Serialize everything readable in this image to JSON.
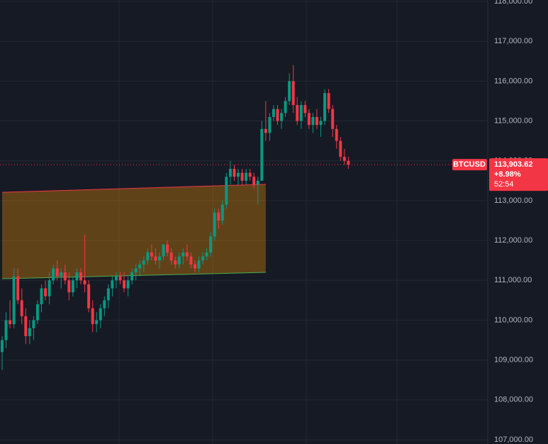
{
  "chart_data": {
    "type": "candlestick",
    "symbol": "BTCUSD",
    "ylim": [
      106893,
      118036
    ],
    "yticks": [
      {
        "value": 107000,
        "label": "107,000.00"
      },
      {
        "value": 108000,
        "label": "108,000.00"
      },
      {
        "value": 109000,
        "label": "109,000.00"
      },
      {
        "value": 110000,
        "label": "110,000.00"
      },
      {
        "value": 111000,
        "label": "111,000.00"
      },
      {
        "value": 112000,
        "label": "112,000.00"
      },
      {
        "value": 113000,
        "label": "113,000.00"
      },
      {
        "value": 114000,
        "label": "114,000.00"
      },
      {
        "value": 115000,
        "label": "115,000.00"
      },
      {
        "value": 116000,
        "label": "116,000.00"
      },
      {
        "value": 117000,
        "label": "117,000.00"
      },
      {
        "value": 118000,
        "label": "118,000.00"
      }
    ],
    "grid": true,
    "up_color": "#089981",
    "down_color": "#f23645",
    "ohlc": [
      [
        109200,
        109600,
        108750,
        109500
      ],
      [
        109500,
        110200,
        109300,
        110000
      ],
      [
        110000,
        110500,
        109800,
        109900
      ],
      [
        109900,
        111300,
        109800,
        111100
      ],
      [
        111100,
        111300,
        110400,
        110500
      ],
      [
        110500,
        110800,
        109900,
        110100
      ],
      [
        110100,
        110300,
        109400,
        109600
      ],
      [
        109600,
        110000,
        109400,
        109800
      ],
      [
        109800,
        110100,
        109500,
        110000
      ],
      [
        110000,
        110500,
        109900,
        110400
      ],
      [
        110400,
        110900,
        110200,
        110800
      ],
      [
        110800,
        111000,
        110500,
        110600
      ],
      [
        110600,
        111200,
        110400,
        111000
      ],
      [
        111000,
        111400,
        110900,
        111300
      ],
      [
        111300,
        111500,
        111000,
        111100
      ],
      [
        111100,
        111300,
        110800,
        111200
      ],
      [
        111200,
        111400,
        110900,
        111000
      ],
      [
        111000,
        111200,
        110500,
        110700
      ],
      [
        110700,
        111100,
        110600,
        111000
      ],
      [
        111000,
        111300,
        110800,
        111200
      ],
      [
        111200,
        111300,
        110900,
        111000
      ],
      [
        111000,
        112150,
        110700,
        110900
      ],
      [
        110900,
        111000,
        110200,
        110300
      ],
      [
        110300,
        110500,
        109700,
        109900
      ],
      [
        109900,
        110200,
        109700,
        110000
      ],
      [
        110000,
        110400,
        109800,
        110300
      ],
      [
        110300,
        110600,
        110100,
        110500
      ],
      [
        110500,
        110900,
        110300,
        110800
      ],
      [
        110800,
        111100,
        110600,
        111000
      ],
      [
        111000,
        111200,
        110800,
        111100
      ],
      [
        111100,
        111200,
        110900,
        111000
      ],
      [
        111000,
        111200,
        110700,
        110800
      ],
      [
        110800,
        111100,
        110600,
        111000
      ],
      [
        111000,
        111300,
        110900,
        111200
      ],
      [
        111200,
        111400,
        111000,
        111300
      ],
      [
        111300,
        111500,
        111100,
        111400
      ],
      [
        111400,
        111600,
        111200,
        111500
      ],
      [
        111500,
        111800,
        111400,
        111700
      ],
      [
        111700,
        111900,
        111500,
        111600
      ],
      [
        111600,
        111800,
        111400,
        111500
      ],
      [
        111500,
        111700,
        111300,
        111600
      ],
      [
        111600,
        111900,
        111500,
        111900
      ],
      [
        111900,
        112000,
        111600,
        111700
      ],
      [
        111700,
        111800,
        111400,
        111500
      ],
      [
        111500,
        111600,
        111300,
        111400
      ],
      [
        111400,
        111700,
        111300,
        111600
      ],
      [
        111600,
        111800,
        111400,
        111700
      ],
      [
        111700,
        111900,
        111500,
        111600
      ],
      [
        111600,
        111700,
        111300,
        111400
      ],
      [
        111400,
        111500,
        111200,
        111300
      ],
      [
        111300,
        111600,
        111200,
        111500
      ],
      [
        111500,
        111700,
        111400,
        111600
      ],
      [
        111600,
        111800,
        111500,
        111700
      ],
      [
        111700,
        112200,
        111600,
        112100
      ],
      [
        112100,
        112800,
        112000,
        112700
      ],
      [
        112700,
        112800,
        112300,
        112500
      ],
      [
        112500,
        113000,
        112400,
        112900
      ],
      [
        112900,
        113700,
        112800,
        113600
      ],
      [
        113600,
        114000,
        113400,
        113800
      ],
      [
        113800,
        113900,
        113500,
        113600
      ],
      [
        113600,
        113800,
        113400,
        113700
      ],
      [
        113700,
        113800,
        113400,
        113500
      ],
      [
        113500,
        113800,
        113400,
        113700
      ],
      [
        113700,
        113800,
        113500,
        113600
      ],
      [
        113600,
        113700,
        113300,
        113400
      ],
      [
        113400,
        113600,
        112900,
        113500
      ],
      [
        113500,
        115000,
        113500,
        114800
      ],
      [
        114800,
        115500,
        114500,
        114700
      ],
      [
        114700,
        115200,
        114500,
        115100
      ],
      [
        115100,
        115400,
        115000,
        115300
      ],
      [
        115300,
        115400,
        114900,
        115000
      ],
      [
        115000,
        115300,
        114800,
        115200
      ],
      [
        115200,
        115600,
        115100,
        115500
      ],
      [
        115500,
        116200,
        115400,
        116000
      ],
      [
        116000,
        116400,
        115200,
        115400
      ],
      [
        115400,
        115600,
        114900,
        115000
      ],
      [
        115000,
        115500,
        114800,
        115400
      ],
      [
        115400,
        115500,
        115100,
        115200
      ],
      [
        115200,
        115300,
        114800,
        114900
      ],
      [
        114900,
        115200,
        114700,
        115100
      ],
      [
        115100,
        115300,
        114800,
        114900
      ],
      [
        114900,
        115100,
        114600,
        115000
      ],
      [
        115000,
        115800,
        114900,
        115700
      ],
      [
        115700,
        115800,
        115200,
        115300
      ],
      [
        115300,
        115400,
        114600,
        114800
      ],
      [
        114800,
        114900,
        114300,
        114500
      ],
      [
        114500,
        114600,
        114000,
        114100
      ],
      [
        114100,
        114300,
        113900,
        114000
      ],
      [
        114000,
        114100,
        113800,
        113903.62
      ]
    ],
    "channel": {
      "start": 0,
      "end": 67,
      "upper": [
        113210,
        113410
      ],
      "lower": [
        111040,
        111200
      ]
    },
    "last_price": {
      "value": 113903.62,
      "label": "113,903.62"
    },
    "change": "+8.98%",
    "countdown": "52:54"
  }
}
